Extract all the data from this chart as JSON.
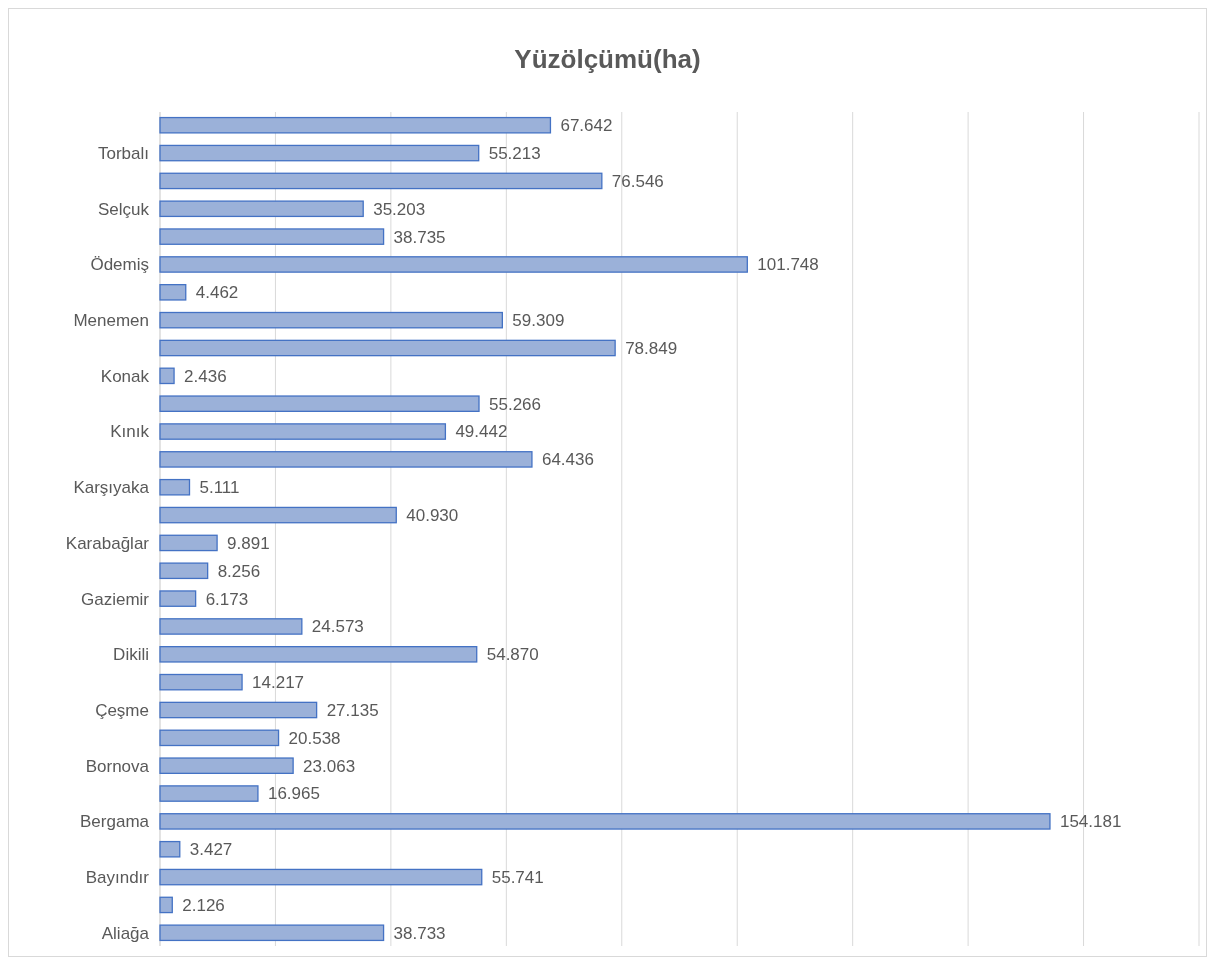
{
  "chart_data": {
    "type": "bar",
    "orientation": "horizontal",
    "title": "Yüzölçümü(ha)",
    "categories": [
      null,
      "Torbalı",
      null,
      "Selçuk",
      null,
      "Ödemiş",
      null,
      "Menemen",
      null,
      "Konak",
      null,
      "Kınık",
      null,
      "Karşıyaka",
      null,
      "Karabağlar",
      null,
      "Gaziemir",
      null,
      "Dikili",
      null,
      "Çeşme",
      null,
      "Bornova",
      null,
      "Bergama",
      null,
      "Bayındır",
      null,
      "Aliağa"
    ],
    "values": [
      67.642,
      55.213,
      76.546,
      35.203,
      38.735,
      101.748,
      4.462,
      59.309,
      78.849,
      2.436,
      55.266,
      49.442,
      64.436,
      5.111,
      40.93,
      9.891,
      8.256,
      6.173,
      24.573,
      54.87,
      14.217,
      27.135,
      20.538,
      23.063,
      16.965,
      154.181,
      3.427,
      55.741,
      2.126,
      38.733
    ],
    "value_labels": [
      "67.642",
      "55.213",
      "76.546",
      "35.203",
      "38.735",
      "101.748",
      "4.462",
      "59.309",
      "78.849",
      "2.436",
      "55.266",
      "49.442",
      "64.436",
      "5.111",
      "40.930",
      "9.891",
      "8.256",
      "6.173",
      "24.573",
      "54.870",
      "14.217",
      "27.135",
      "20.538",
      "23.063",
      "16.965",
      "154.181",
      "3.427",
      "55.741",
      "2.126",
      "38.733"
    ],
    "color": "#9bb1d9",
    "xlim": [
      0,
      180
    ],
    "xticks": [
      {
        "value": 0,
        "label": null
      },
      {
        "value": 20,
        "label": null
      },
      {
        "value": 40,
        "label": null
      },
      {
        "value": 60,
        "label": null
      },
      {
        "value": 80,
        "label": null
      },
      {
        "value": 100,
        "label": null
      },
      {
        "value": 120,
        "label": null
      },
      {
        "value": 140,
        "label": null
      },
      {
        "value": 160,
        "label": null
      },
      {
        "value": 180,
        "label": null
      }
    ],
    "grid": "x",
    "tick_labels": "y"
  }
}
